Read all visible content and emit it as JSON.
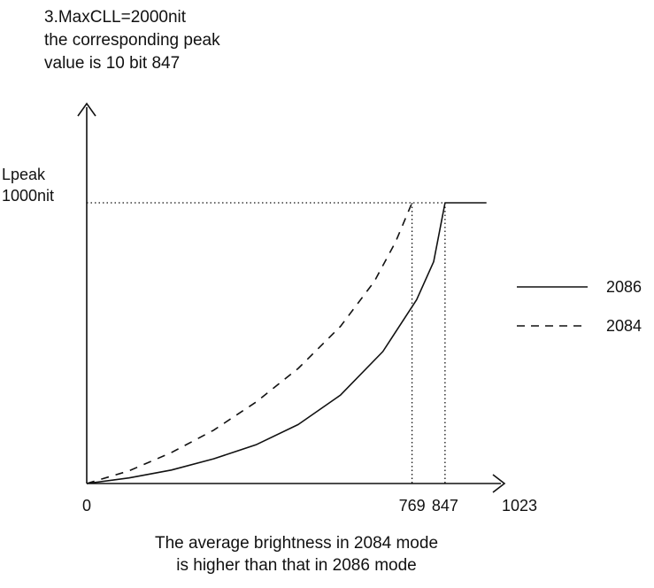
{
  "chart_data": {
    "type": "line",
    "title_lines": [
      "3.MaxCLL=2000nit",
      "the corresponding peak",
      "value is 10 bit 847"
    ],
    "ylabel_lines": [
      "Lpeak",
      "1000nit"
    ],
    "caption_lines": [
      "The average brightness in 2084 mode",
      "is higher than that in 2086 mode"
    ],
    "x_ticks": [
      {
        "value": 0,
        "label": "0"
      },
      {
        "value": 769,
        "label": "769"
      },
      {
        "value": 847,
        "label": "847"
      },
      {
        "value": 1023,
        "label": "1023"
      }
    ],
    "xlim": [
      0,
      1023
    ],
    "peak_value": 1000,
    "series": [
      {
        "name": "2086",
        "style": "solid",
        "points": [
          [
            0,
            0
          ],
          [
            100,
            20
          ],
          [
            200,
            48
          ],
          [
            300,
            88
          ],
          [
            400,
            138
          ],
          [
            500,
            210
          ],
          [
            600,
            315
          ],
          [
            700,
            470
          ],
          [
            780,
            655
          ],
          [
            820,
            790
          ],
          [
            847,
            1000
          ],
          [
            945,
            1000
          ]
        ]
      },
      {
        "name": "2084",
        "style": "dashed",
        "points": [
          [
            0,
            0
          ],
          [
            100,
            45
          ],
          [
            200,
            110
          ],
          [
            300,
            190
          ],
          [
            400,
            290
          ],
          [
            500,
            410
          ],
          [
            600,
            560
          ],
          [
            680,
            720
          ],
          [
            730,
            860
          ],
          [
            769,
            1000
          ]
        ]
      }
    ],
    "legend": [
      {
        "name": "2086",
        "style": "solid"
      },
      {
        "name": "2084",
        "style": "dashed"
      }
    ],
    "legend_position": "right",
    "colors": {
      "line": "#111111",
      "background": "#ffffff"
    }
  }
}
